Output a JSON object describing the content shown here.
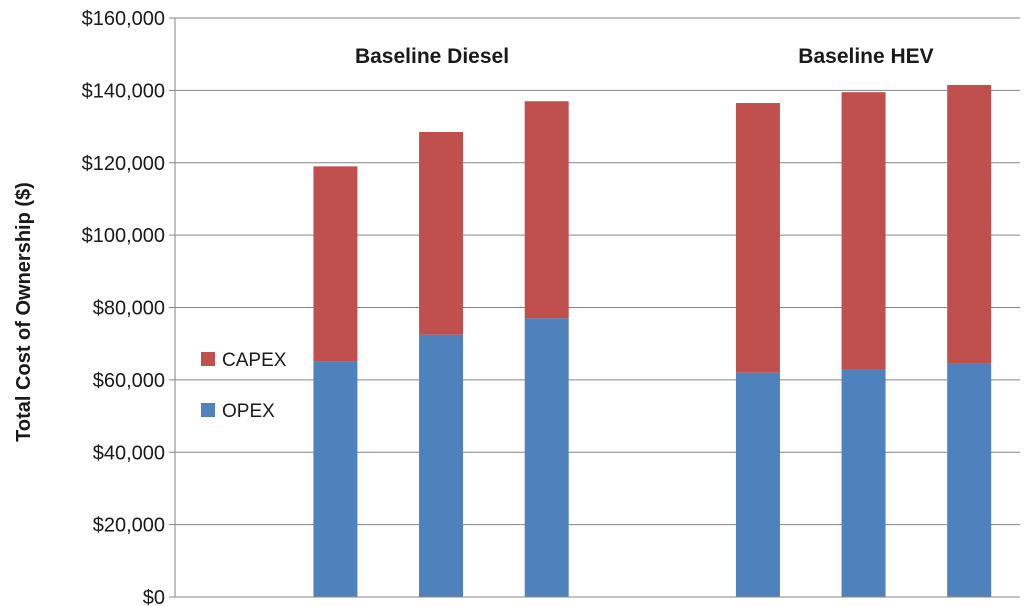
{
  "chart_data": {
    "type": "bar",
    "stacked": true,
    "ylabel": "Total Cost of Ownership ($)",
    "ylim": [
      0,
      160000
    ],
    "yticks": [
      0,
      20000,
      40000,
      60000,
      80000,
      100000,
      120000,
      140000,
      160000
    ],
    "ytick_labels": [
      "$0",
      "$20,000",
      "$40,000",
      "$60,000",
      "$80,000",
      "$100,000",
      "$120,000",
      "$140,000",
      "$160,000"
    ],
    "grid": "horizontal",
    "legend_position": "left-middle",
    "groups": [
      {
        "label": "Baseline Diesel"
      },
      {
        "label": "Baseline HEV"
      }
    ],
    "series": [
      {
        "name": "OPEX",
        "color": "#4f81bd",
        "values": [
          65000,
          72500,
          77000,
          62000,
          63000,
          64500
        ]
      },
      {
        "name": "CAPEX",
        "color": "#c0504d",
        "values": [
          54000,
          56000,
          60000,
          74500,
          76500,
          77000
        ]
      }
    ]
  }
}
